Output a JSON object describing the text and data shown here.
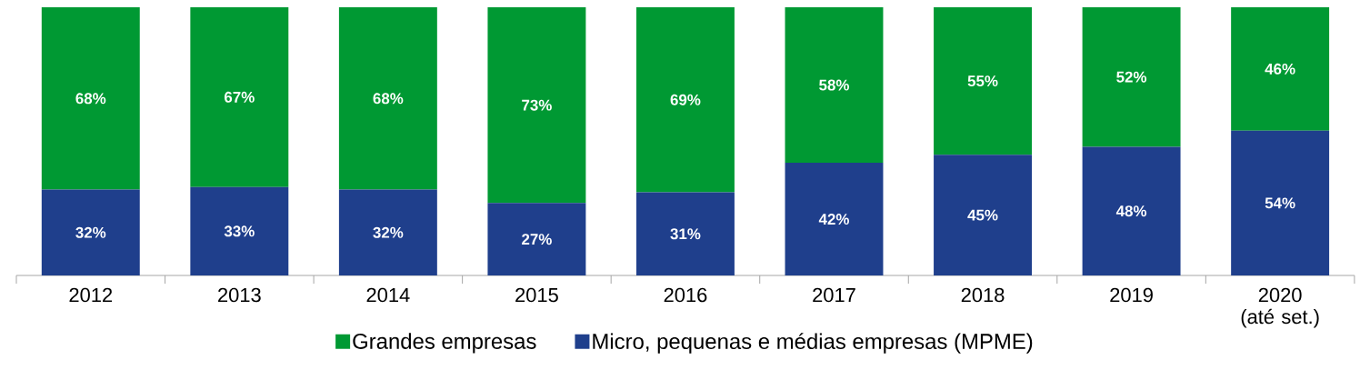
{
  "chart_data": {
    "type": "bar",
    "stacked": true,
    "legend": "bottom",
    "categories": [
      "2012",
      "2013",
      "2014",
      "2015",
      "2016",
      "2017",
      "2018",
      "2019",
      "2020 (até set.)"
    ],
    "series": [
      {
        "name": "Micro, pequenas e médias empresas (MPME)",
        "color": "#1f3f8c",
        "values": [
          32,
          33,
          32,
          27,
          31,
          42,
          45,
          48,
          54
        ],
        "value_labels": [
          "32%",
          "33%",
          "32%",
          "27%",
          "31%",
          "42%",
          "45%",
          "48%",
          "54%"
        ]
      },
      {
        "name": "Grandes empresas",
        "color": "#009933",
        "values": [
          68,
          67,
          68,
          73,
          69,
          58,
          55,
          52,
          46
        ],
        "value_labels": [
          "68%",
          "67%",
          "68%",
          "73%",
          "69%",
          "58%",
          "55%",
          "52%",
          "46%"
        ]
      }
    ]
  }
}
